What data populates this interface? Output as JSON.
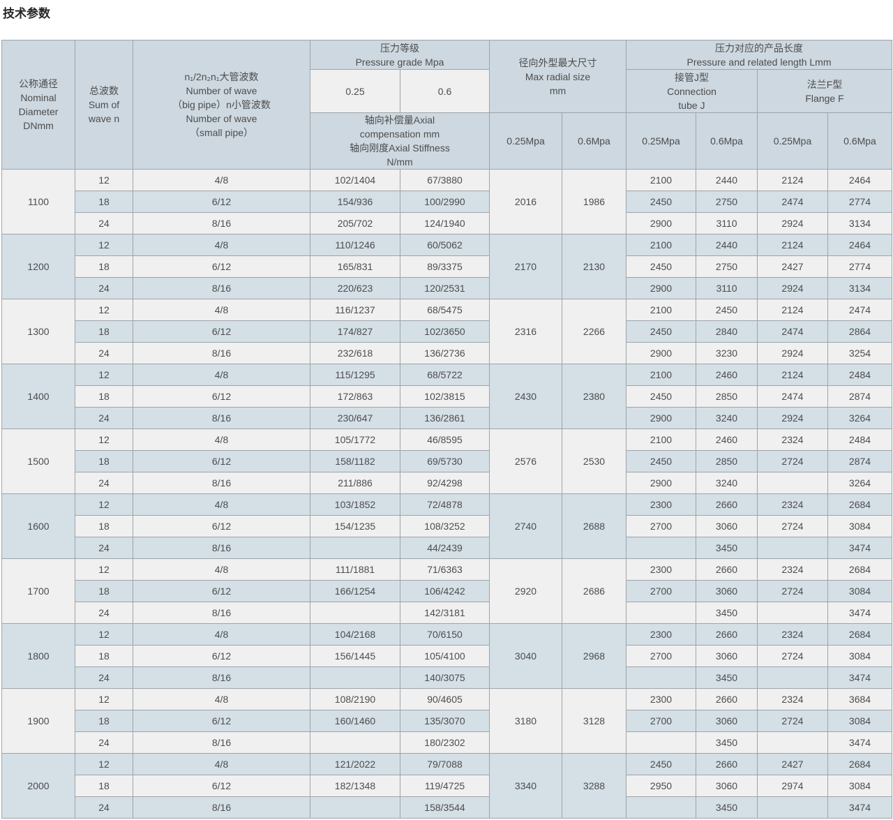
{
  "title": "技术参数",
  "colors": {
    "header_bg": "#cdd8e0",
    "subheader_bg": "#f0f0f0",
    "row_light": "#f0f0f0",
    "row_dark": "#d4dfe6",
    "border": "#9ea4a8",
    "text": "#4d4d4d",
    "title_text": "#262626"
  },
  "table": {
    "header": {
      "nominal_diameter": "公称通径\nNominal\nDiameter\nDNmm",
      "sum_of_wave": "总波数\nSum of\nwave n",
      "wave_numbers": "n₁/2n₂n₁大管波数\nNumber of wave\n（big pipe）n小管波数\nNumber of wave\n（small pipe）",
      "pressure_grade": "压力等级\nPressure grade Mpa",
      "p025": "0.25",
      "p06": "0.6",
      "axial": "轴向补偿量Axial\ncompensation mm\n轴向刚度Axial Stiffness\nN/mm",
      "max_radial": "径向外型最大尺寸\nMax radial size\nmm",
      "length": "压力对应的产品长度\nPressure and related length Lmm",
      "connection": "接管J型\nConnection\ntube J",
      "flange": "法兰F型\nFlange F",
      "mpa025": "0.25Mpa",
      "mpa06": "0.6Mpa"
    },
    "blocks": [
      {
        "dn": "1100",
        "radial_p025": "2016",
        "radial_p06": "1986",
        "rows": [
          {
            "waves": "12",
            "pipe_waves": "4/8",
            "comp025": "102/1404",
            "comp06": "67/3880",
            "j025": "2100",
            "j06": "2440",
            "f025": "2124",
            "f06": "2464"
          },
          {
            "waves": "18",
            "pipe_waves": "6/12",
            "comp025": "154/936",
            "comp06": "100/2990",
            "j025": "2450",
            "j06": "2750",
            "f025": "2474",
            "f06": "2774"
          },
          {
            "waves": "24",
            "pipe_waves": "8/16",
            "comp025": "205/702",
            "comp06": "124/1940",
            "j025": "2900",
            "j06": "3110",
            "f025": "2924",
            "f06": "3134"
          }
        ]
      },
      {
        "dn": "1200",
        "radial_p025": "2170",
        "radial_p06": "2130",
        "rows": [
          {
            "waves": "12",
            "pipe_waves": "4/8",
            "comp025": "110/1246",
            "comp06": "60/5062",
            "j025": "2100",
            "j06": "2440",
            "f025": "2124",
            "f06": "2464"
          },
          {
            "waves": "18",
            "pipe_waves": "6/12",
            "comp025": "165/831",
            "comp06": "89/3375",
            "j025": "2450",
            "j06": "2750",
            "f025": "2427",
            "f06": "2774"
          },
          {
            "waves": "24",
            "pipe_waves": "8/16",
            "comp025": "220/623",
            "comp06": "120/2531",
            "j025": "2900",
            "j06": "3110",
            "f025": "2924",
            "f06": "3134"
          }
        ]
      },
      {
        "dn": "1300",
        "radial_p025": "2316",
        "radial_p06": "2266",
        "rows": [
          {
            "waves": "12",
            "pipe_waves": "4/8",
            "comp025": "116/1237",
            "comp06": "68/5475",
            "j025": "2100",
            "j06": "2450",
            "f025": "2124",
            "f06": "2474"
          },
          {
            "waves": "18",
            "pipe_waves": "6/12",
            "comp025": "174/827",
            "comp06": "102/3650",
            "j025": "2450",
            "j06": "2840",
            "f025": "2474",
            "f06": "2864"
          },
          {
            "waves": "24",
            "pipe_waves": "8/16",
            "comp025": "232/618",
            "comp06": "136/2736",
            "j025": "2900",
            "j06": "3230",
            "f025": "2924",
            "f06": "3254"
          }
        ]
      },
      {
        "dn": "1400",
        "radial_p025": "2430",
        "radial_p06": "2380",
        "rows": [
          {
            "waves": "12",
            "pipe_waves": "4/8",
            "comp025": "115/1295",
            "comp06": "68/5722",
            "j025": "2100",
            "j06": "2460",
            "f025": "2124",
            "f06": "2484"
          },
          {
            "waves": "18",
            "pipe_waves": "6/12",
            "comp025": "172/863",
            "comp06": "102/3815",
            "j025": "2450",
            "j06": "2850",
            "f025": "2474",
            "f06": "2874"
          },
          {
            "waves": "24",
            "pipe_waves": "8/16",
            "comp025": "230/647",
            "comp06": "136/2861",
            "j025": "2900",
            "j06": "3240",
            "f025": "2924",
            "f06": "3264"
          }
        ]
      },
      {
        "dn": "1500",
        "radial_p025": "2576",
        "radial_p06": "2530",
        "rows": [
          {
            "waves": "12",
            "pipe_waves": "4/8",
            "comp025": "105/1772",
            "comp06": "46/8595",
            "j025": "2100",
            "j06": "2460",
            "f025": "2324",
            "f06": "2484"
          },
          {
            "waves": "18",
            "pipe_waves": "6/12",
            "comp025": "158/1182",
            "comp06": "69/5730",
            "j025": "2450",
            "j06": "2850",
            "f025": "2724",
            "f06": "2874"
          },
          {
            "waves": "24",
            "pipe_waves": "8/16",
            "comp025": "211/886",
            "comp06": "92/4298",
            "j025": "2900",
            "j06": "3240",
            "f025": "",
            "f06": "3264"
          }
        ]
      },
      {
        "dn": "1600",
        "radial_p025": "2740",
        "radial_p06": "2688",
        "rows": [
          {
            "waves": "12",
            "pipe_waves": "4/8",
            "comp025": "103/1852",
            "comp06": "72/4878",
            "j025": "2300",
            "j06": "2660",
            "f025": "2324",
            "f06": "2684"
          },
          {
            "waves": "18",
            "pipe_waves": "6/12",
            "comp025": "154/1235",
            "comp06": "108/3252",
            "j025": "2700",
            "j06": "3060",
            "f025": "2724",
            "f06": "3084"
          },
          {
            "waves": "24",
            "pipe_waves": "8/16",
            "comp025": "",
            "comp06": "44/2439",
            "j025": "",
            "j06": "3450",
            "f025": "",
            "f06": "3474"
          }
        ]
      },
      {
        "dn": "1700",
        "radial_p025": "2920",
        "radial_p06": "2686",
        "rows": [
          {
            "waves": "12",
            "pipe_waves": "4/8",
            "comp025": "111/1881",
            "comp06": "71/6363",
            "j025": "2300",
            "j06": "2660",
            "f025": "2324",
            "f06": "2684"
          },
          {
            "waves": "18",
            "pipe_waves": "6/12",
            "comp025": "166/1254",
            "comp06": "106/4242",
            "j025": "2700",
            "j06": "3060",
            "f025": "2724",
            "f06": "3084"
          },
          {
            "waves": "24",
            "pipe_waves": "8/16",
            "comp025": "",
            "comp06": "142/3181",
            "j025": "",
            "j06": "3450",
            "f025": "",
            "f06": "3474"
          }
        ]
      },
      {
        "dn": "1800",
        "radial_p025": "3040",
        "radial_p06": "2968",
        "rows": [
          {
            "waves": "12",
            "pipe_waves": "4/8",
            "comp025": "104/2168",
            "comp06": "70/6150",
            "j025": "2300",
            "j06": "2660",
            "f025": "2324",
            "f06": "2684"
          },
          {
            "waves": "18",
            "pipe_waves": "6/12",
            "comp025": "156/1445",
            "comp06": "105/4100",
            "j025": "2700",
            "j06": "3060",
            "f025": "2724",
            "f06": "3084"
          },
          {
            "waves": "24",
            "pipe_waves": "8/16",
            "comp025": "",
            "comp06": "140/3075",
            "j025": "",
            "j06": "3450",
            "f025": "",
            "f06": "3474"
          }
        ]
      },
      {
        "dn": "1900",
        "radial_p025": "3180",
        "radial_p06": "3128",
        "rows": [
          {
            "waves": "12",
            "pipe_waves": "4/8",
            "comp025": "108/2190",
            "comp06": "90/4605",
            "j025": "2300",
            "j06": "2660",
            "f025": "2324",
            "f06": "3684"
          },
          {
            "waves": "18",
            "pipe_waves": "6/12",
            "comp025": "160/1460",
            "comp06": "135/3070",
            "j025": "2700",
            "j06": "3060",
            "f025": "2724",
            "f06": "3084"
          },
          {
            "waves": "24",
            "pipe_waves": "8/16",
            "comp025": "",
            "comp06": "180/2302",
            "j025": "",
            "j06": "3450",
            "f025": "",
            "f06": "3474"
          }
        ]
      },
      {
        "dn": "2000",
        "radial_p025": "3340",
        "radial_p06": "3288",
        "rows": [
          {
            "waves": "12",
            "pipe_waves": "4/8",
            "comp025": "121/2022",
            "comp06": "79/7088",
            "j025": "2450",
            "j06": "2660",
            "f025": "2427",
            "f06": "2684"
          },
          {
            "waves": "18",
            "pipe_waves": "6/12",
            "comp025": "182/1348",
            "comp06": "119/4725",
            "j025": "2950",
            "j06": "3060",
            "f025": "2974",
            "f06": "3084"
          },
          {
            "waves": "24",
            "pipe_waves": "8/16",
            "comp025": "",
            "comp06": "158/3544",
            "j025": "",
            "j06": "3450",
            "f025": "",
            "f06": "3474"
          }
        ]
      }
    ]
  }
}
